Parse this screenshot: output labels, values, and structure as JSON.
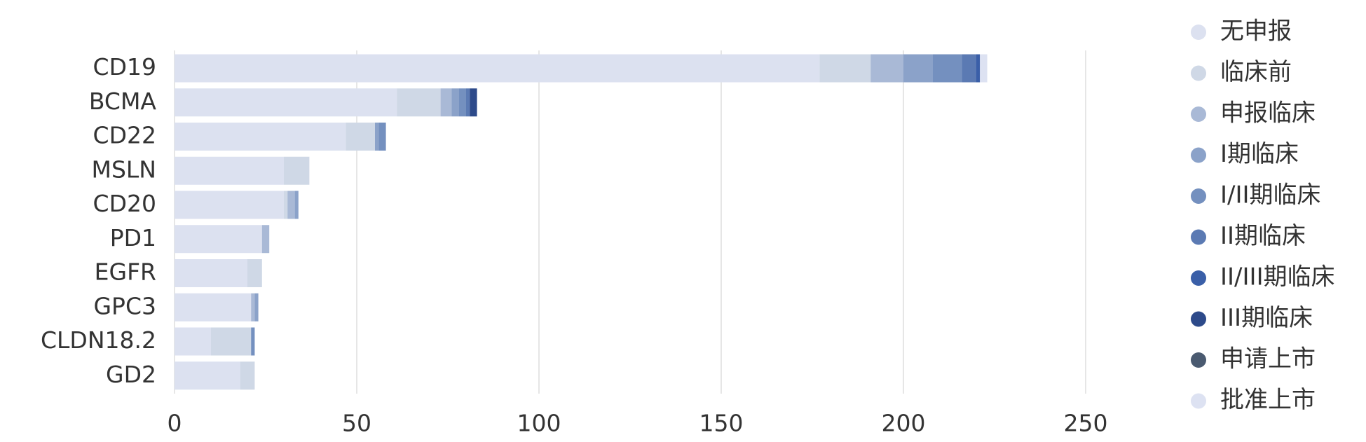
{
  "chart_data": {
    "type": "stacked-barh",
    "categories": [
      "CD19",
      "BCMA",
      "CD22",
      "MSLN",
      "CD20",
      "PD1",
      "EGFR",
      "GPC3",
      "CLDN18.2",
      "GD2"
    ],
    "series": [
      {
        "name": "无申报",
        "color": "#dce1f0",
        "values": [
          177,
          61,
          47,
          30,
          30,
          24,
          20,
          21,
          10,
          18
        ]
      },
      {
        "name": "临床前",
        "color": "#cfd8e6",
        "values": [
          14,
          12,
          8,
          7,
          1,
          0,
          4,
          0,
          11,
          4
        ]
      },
      {
        "name": "申报临床",
        "color": "#a9b9d6",
        "values": [
          9,
          3,
          0,
          0,
          2,
          2,
          0,
          1,
          0,
          0
        ]
      },
      {
        "name": "I期临床",
        "color": "#8ba2c9",
        "values": [
          8,
          2,
          1,
          0,
          1,
          0,
          0,
          1,
          0,
          0
        ]
      },
      {
        "name": "I/II期临床",
        "color": "#7490bf",
        "values": [
          8,
          2,
          2,
          0,
          0,
          0,
          0,
          0,
          1,
          0
        ]
      },
      {
        "name": "II期临床",
        "color": "#5b7ab3",
        "values": [
          4,
          1,
          0,
          0,
          0,
          0,
          0,
          0,
          0,
          0
        ]
      },
      {
        "name": "II/III期临床",
        "color": "#3a5fa8",
        "values": [
          1,
          0,
          0,
          0,
          0,
          0,
          0,
          0,
          0,
          0
        ]
      },
      {
        "name": "III期临床",
        "color": "#2d4a8a",
        "values": [
          0,
          2,
          0,
          0,
          0,
          0,
          0,
          0,
          0,
          0
        ]
      },
      {
        "name": "申请上市",
        "color": "#4a5a70",
        "values": [
          0,
          0,
          0,
          0,
          0,
          0,
          0,
          0,
          0,
          0
        ]
      },
      {
        "name": "批准上市",
        "color": "#dde2f2",
        "values": [
          2,
          0,
          0,
          0,
          0,
          0,
          0,
          0,
          0,
          0
        ]
      }
    ],
    "xlim": [
      0,
      250
    ],
    "xticks": [
      0,
      50,
      100,
      150,
      200,
      250
    ],
    "grid": true,
    "legend": "right"
  }
}
